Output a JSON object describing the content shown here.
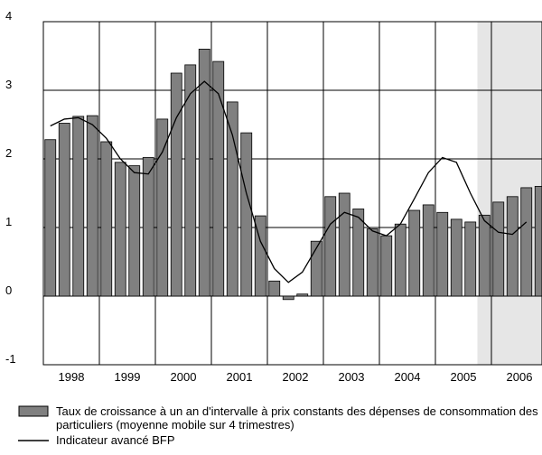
{
  "chart_data": {
    "type": "bar_line",
    "x": [
      1998.125,
      1998.375,
      1998.625,
      1998.875,
      1999.125,
      1999.375,
      1999.625,
      1999.875,
      2000.125,
      2000.375,
      2000.625,
      2000.875,
      2001.125,
      2001.375,
      2001.625,
      2001.875,
      2002.125,
      2002.375,
      2002.625,
      2002.875,
      2003.125,
      2003.375,
      2003.625,
      2003.875,
      2004.125,
      2004.375,
      2004.625,
      2004.875,
      2005.125,
      2005.375,
      2005.625,
      2005.875,
      2006.125,
      2006.375,
      2006.625,
      2006.875
    ],
    "series": [
      {
        "name": "Taux de croissance à un an d'intervalle à prix constants des dépenses de consommation des particuliers (moyenne mobile sur 4 trimestres)",
        "color": "#808080",
        "kind": "bar",
        "values": [
          2.28,
          2.52,
          2.62,
          2.63,
          2.25,
          1.95,
          1.9,
          2.02,
          2.58,
          3.25,
          3.37,
          3.6,
          3.42,
          2.83,
          2.38,
          1.17,
          0.22,
          -0.05,
          0.03,
          0.8,
          1.45,
          1.5,
          1.27,
          0.98,
          0.88,
          1.05,
          1.25,
          1.33,
          1.22,
          1.12,
          1.08,
          1.18,
          1.37,
          1.45,
          1.58,
          1.6
        ]
      },
      {
        "name": "Indicateur avancé BFP",
        "color": "#000000",
        "kind": "line",
        "values": [
          2.48,
          2.58,
          2.6,
          2.5,
          2.3,
          2.0,
          1.8,
          1.78,
          2.1,
          2.6,
          2.95,
          3.13,
          2.95,
          2.35,
          1.5,
          0.8,
          0.4,
          0.2,
          0.35,
          0.7,
          1.05,
          1.22,
          1.15,
          0.95,
          0.88,
          1.05,
          1.42,
          1.8,
          2.02,
          1.95,
          1.5,
          1.1,
          0.93,
          0.9,
          1.08,
          null
        ]
      }
    ],
    "xlim": [
      1998,
      2006.9
    ],
    "xticks": [
      {
        "value": 1998,
        "label": "1998"
      },
      {
        "value": 1999,
        "label": "1999"
      },
      {
        "value": 2000,
        "label": "2000"
      },
      {
        "value": 2001,
        "label": "2001"
      },
      {
        "value": 2002,
        "label": "2002"
      },
      {
        "value": 2003,
        "label": "2003"
      },
      {
        "value": 2004,
        "label": "2004"
      },
      {
        "value": 2005,
        "label": "2005"
      },
      {
        "value": 2006,
        "label": "2006"
      }
    ],
    "ylim": [
      -1,
      4
    ],
    "yticks": [
      -1,
      0,
      1,
      2,
      3,
      4
    ],
    "grid": true,
    "shaded_region": [
      2005.75,
      2006.9
    ],
    "shade_color": "#e6e6e6"
  }
}
